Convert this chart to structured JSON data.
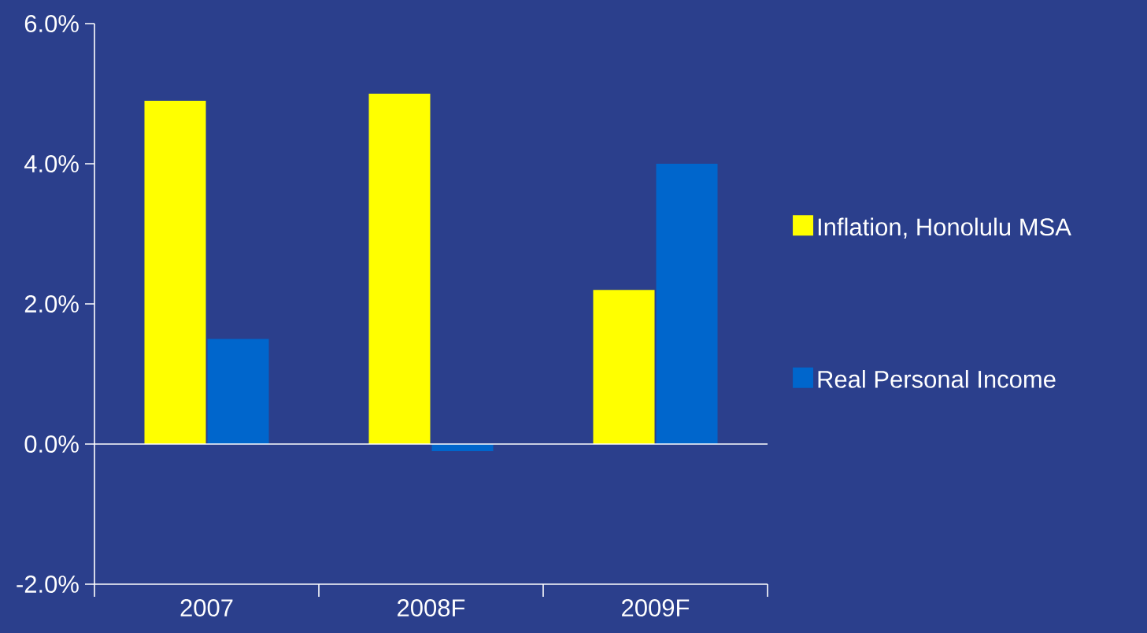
{
  "chart_data": {
    "type": "bar",
    "categories": [
      "2007",
      "2008F",
      "2009F"
    ],
    "series": [
      {
        "name": "Inflation, Honolulu MSA",
        "color": "#ffff00",
        "values": [
          4.9,
          5.0,
          2.2
        ]
      },
      {
        "name": "Real Personal Income",
        "color": "#0066cc",
        "values": [
          1.5,
          -0.1,
          4.0
        ]
      }
    ],
    "ylim": [
      -2,
      6
    ],
    "yticks": [
      {
        "value": -2,
        "label": "-2.0%"
      },
      {
        "value": 0,
        "label": "0.0%"
      },
      {
        "value": 2,
        "label": "2.0%"
      },
      {
        "value": 4,
        "label": "4.0%"
      },
      {
        "value": 6,
        "label": "6.0%"
      }
    ],
    "ref_lines": [
      {
        "axis": "y",
        "value": 0,
        "color": "#ffffff"
      }
    ],
    "grid": false,
    "legend": "right"
  }
}
